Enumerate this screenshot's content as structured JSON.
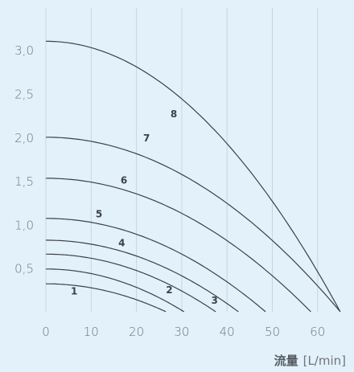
{
  "chart_data": {
    "type": "line",
    "xlabel_main": "流量",
    "xlabel_unit": "[L/min]",
    "ylabel": "",
    "xlim": [
      0,
      65
    ],
    "ylim": [
      0,
      3.4
    ],
    "x_ticks": [
      "0",
      "10",
      "20",
      "30",
      "40",
      "50",
      "60"
    ],
    "x_tick_values": [
      0,
      10,
      20,
      30,
      40,
      50,
      60
    ],
    "y_ticks": [
      "0,5",
      "1,0",
      "1,5",
      "2,0",
      "2,5",
      "3,0"
    ],
    "y_tick_values": [
      0.5,
      1.0,
      1.5,
      2.0,
      2.5,
      3.0
    ],
    "grid": "vertical",
    "colors": {
      "background": "#e3f1fb",
      "grid": "#c9d6df",
      "line": "#3c4248"
    },
    "series": [
      {
        "name": "1",
        "label_at": [
          5.5,
          0.2
        ],
        "y0": 0.32,
        "x_max": 26.5
      },
      {
        "name": "2",
        "label_at": [
          26.5,
          0.21
        ],
        "y0": 0.49,
        "x_max": 30.5
      },
      {
        "name": "3",
        "label_at": [
          36.5,
          0.09
        ],
        "y0": 0.66,
        "x_max": 37.5
      },
      {
        "name": "4",
        "label_at": [
          16,
          0.75
        ],
        "y0": 0.82,
        "x_max": 42.5
      },
      {
        "name": "5",
        "label_at": [
          11,
          1.08
        ],
        "y0": 1.07,
        "x_max": 48.5
      },
      {
        "name": "6",
        "label_at": [
          16.5,
          1.47
        ],
        "y0": 1.53,
        "x_max": 58.5
      },
      {
        "name": "7",
        "label_at": [
          21.5,
          1.95
        ],
        "y0": 2.0,
        "x_max": 65
      },
      {
        "name": "8",
        "label_at": [
          27.5,
          2.23
        ],
        "y0": 3.1,
        "x_max": 65
      }
    ]
  }
}
